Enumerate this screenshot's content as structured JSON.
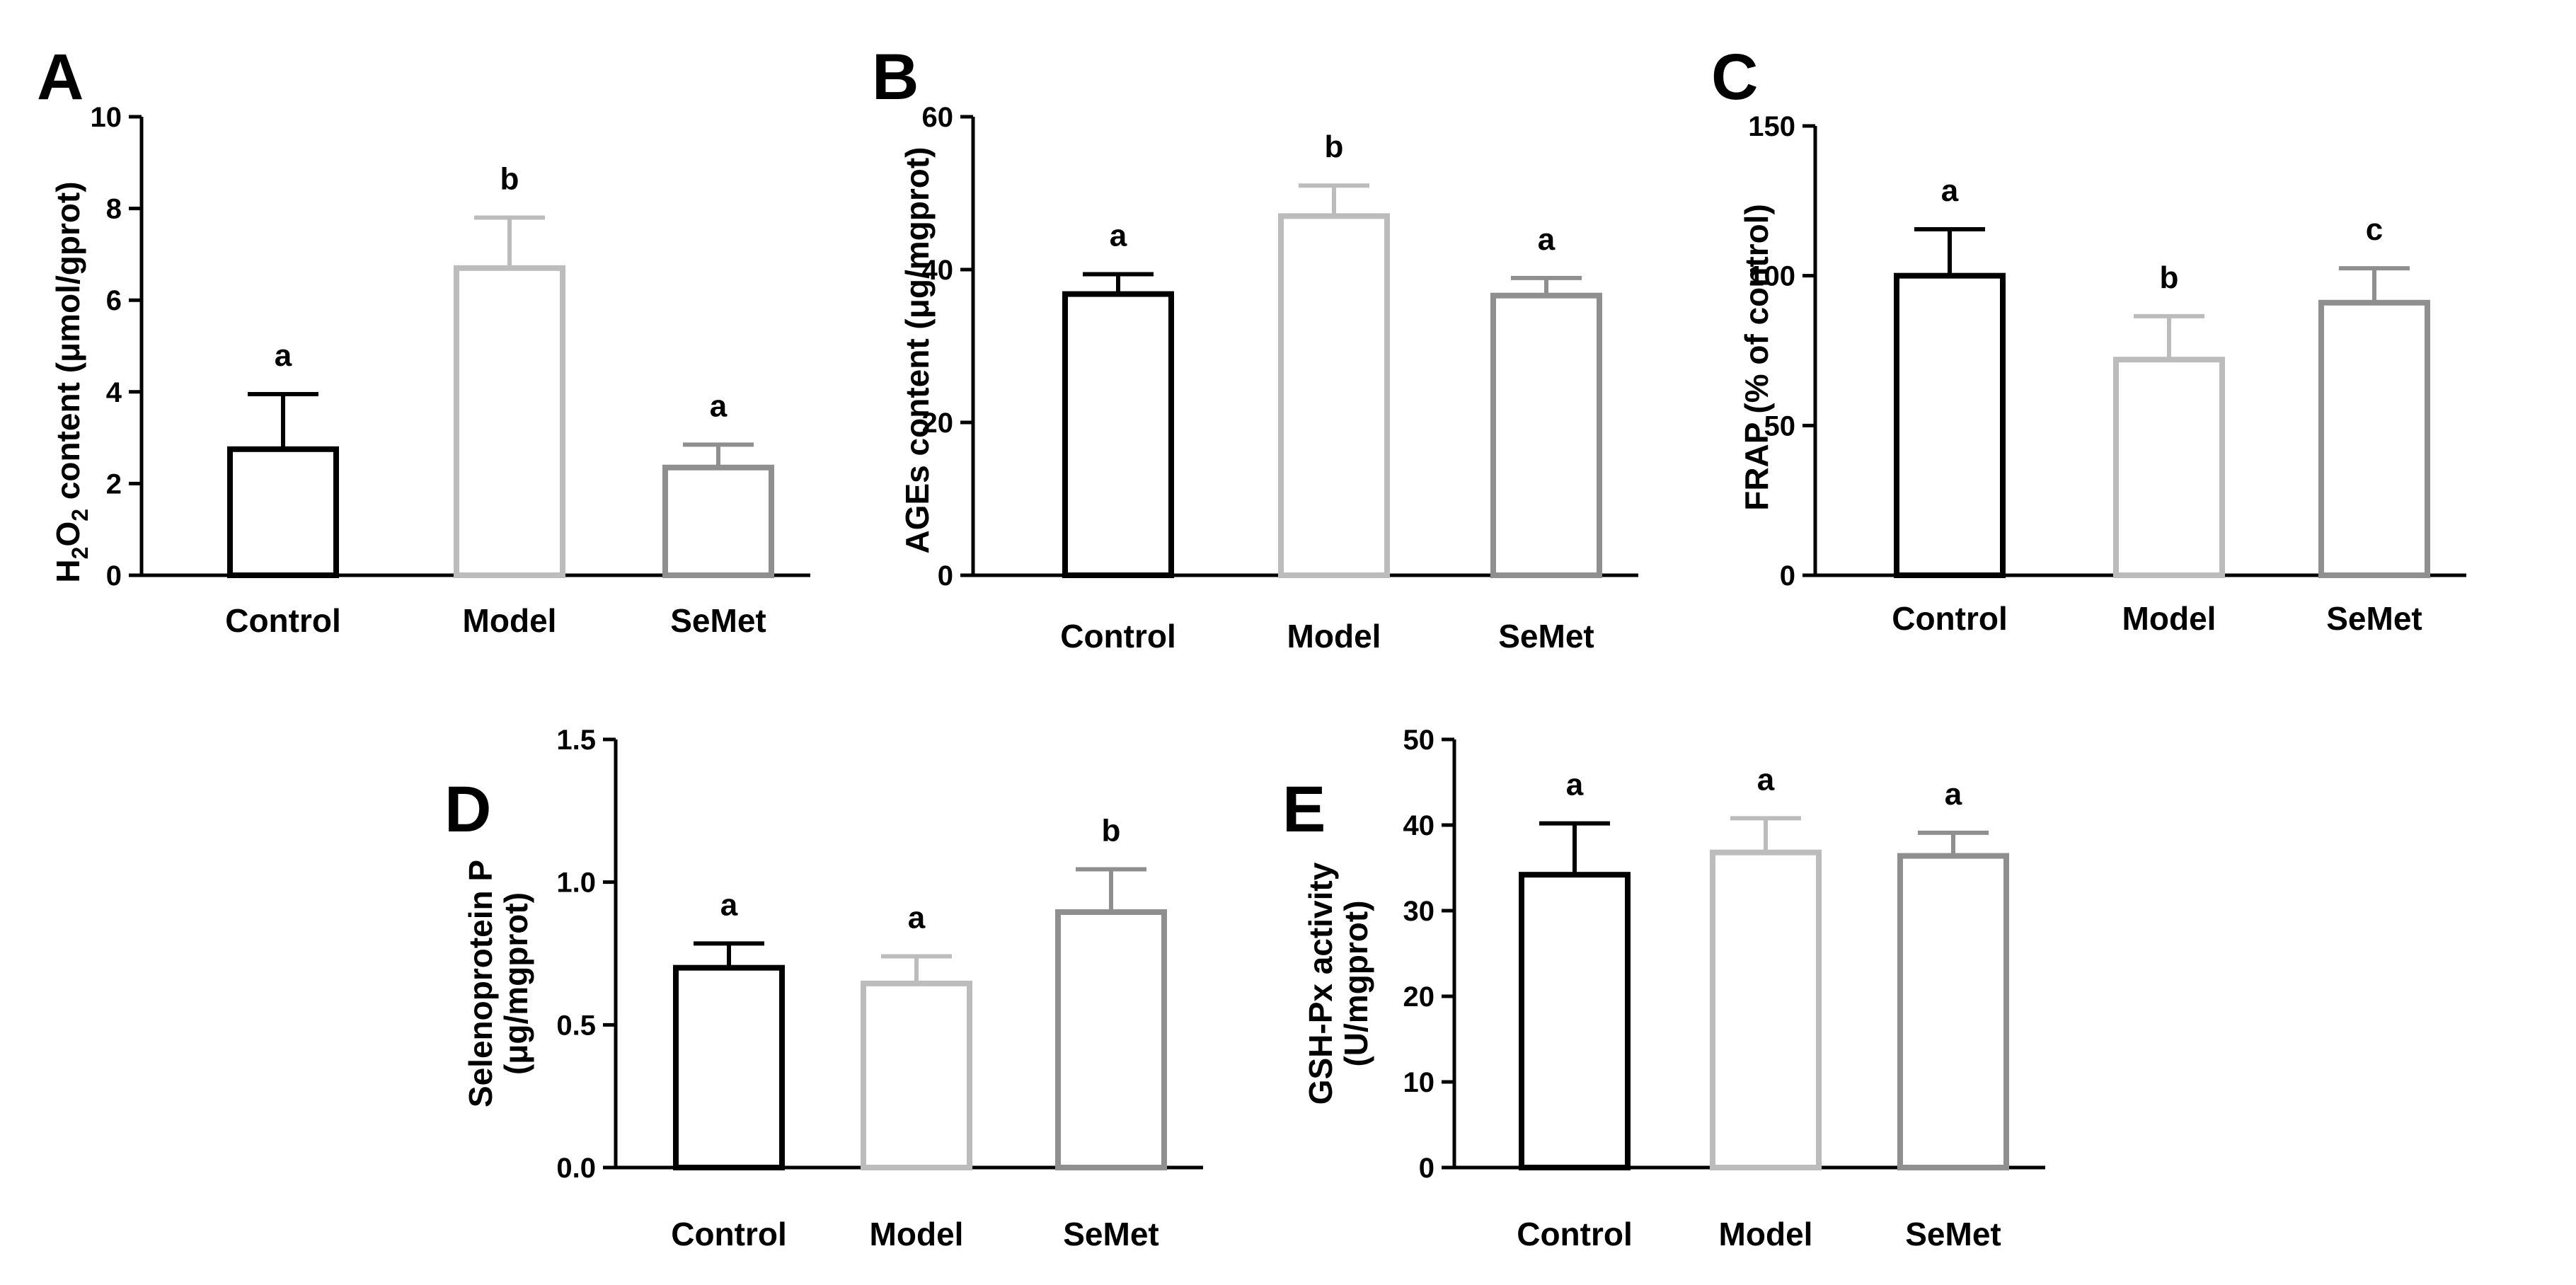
{
  "figure_colors": {
    "Control": "#000000",
    "Model": "#bcbcbc",
    "SeMet": "#8f8f8f",
    "axis": "#000000"
  },
  "chart_data": [
    {
      "panel": "A",
      "type": "bar",
      "categories": [
        "Control",
        "Model",
        "SeMet"
      ],
      "values": [
        2.75,
        6.7,
        2.35
      ],
      "errors": [
        1.2,
        1.1,
        0.5
      ],
      "significance": [
        "a",
        "b",
        "a"
      ],
      "ylabel_prefix": "H",
      "ylabel_sub1": "2",
      "ylabel_mid": "O",
      "ylabel_sub2": "2",
      "ylabel_suffix": " content (μmol/gprot)",
      "ylim": [
        0,
        10
      ],
      "yticks": [
        0,
        2,
        4,
        6,
        8,
        10
      ],
      "ytick_labels": [
        "0",
        "2",
        "4",
        "6",
        "8",
        "10"
      ],
      "grid": false,
      "legend": "none"
    },
    {
      "panel": "B",
      "type": "bar",
      "categories": [
        "Control",
        "Model",
        "SeMet"
      ],
      "values": [
        36.8,
        47.0,
        36.6
      ],
      "errors": [
        2.6,
        4.0,
        2.3
      ],
      "significance": [
        "a",
        "b",
        "a"
      ],
      "ylabel": "AGEs content (μg/mgprot)",
      "ylim": [
        0,
        60
      ],
      "yticks": [
        0,
        20,
        40,
        60
      ],
      "ytick_labels": [
        "0",
        "20",
        "40",
        "60"
      ],
      "grid": false,
      "legend": "none"
    },
    {
      "panel": "C",
      "type": "bar",
      "categories": [
        "Control",
        "Model",
        "SeMet"
      ],
      "values": [
        100,
        72,
        91
      ],
      "errors": [
        15.5,
        14.5,
        11.5
      ],
      "significance": [
        "a",
        "b",
        "c"
      ],
      "ylabel": "FRAP (% of control)",
      "ylim": [
        0,
        150
      ],
      "yticks": [
        0,
        50,
        100,
        150
      ],
      "ytick_labels": [
        "0",
        "50",
        "100",
        "150"
      ],
      "grid": false,
      "legend": "none"
    },
    {
      "panel": "D",
      "type": "bar",
      "categories": [
        "Control",
        "Model",
        "SeMet"
      ],
      "values": [
        0.7,
        0.645,
        0.895
      ],
      "errors": [
        0.085,
        0.095,
        0.15
      ],
      "significance": [
        "a",
        "a",
        "b"
      ],
      "ylabel_line1": "Selenoprotein P",
      "ylabel_line2": "(μg/mgprot)",
      "ylim": [
        0,
        1.5
      ],
      "yticks": [
        0,
        0.5,
        1.0,
        1.5
      ],
      "ytick_labels": [
        "0.0",
        "0.5",
        "1.0",
        "1.5"
      ],
      "grid": false,
      "legend": "none"
    },
    {
      "panel": "E",
      "type": "bar",
      "categories": [
        "Control",
        "Model",
        "SeMet"
      ],
      "values": [
        34.2,
        36.8,
        36.4
      ],
      "errors": [
        6.0,
        4.0,
        2.7
      ],
      "significance": [
        "a",
        "a",
        "a"
      ],
      "ylabel_line1": "GSH-Px activity",
      "ylabel_line2": "(U/mgprot)",
      "ylim": [
        0,
        50
      ],
      "yticks": [
        0,
        10,
        20,
        30,
        40,
        50
      ],
      "ytick_labels": [
        "0",
        "10",
        "20",
        "30",
        "40",
        "50"
      ],
      "grid": false,
      "legend": "none"
    }
  ]
}
